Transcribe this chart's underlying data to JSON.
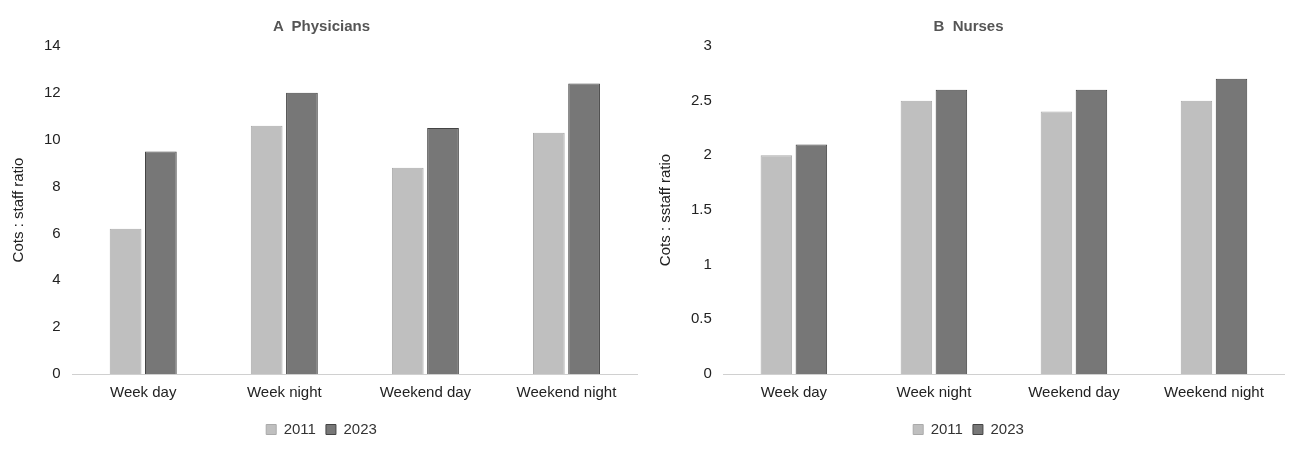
{
  "chart_data": [
    {
      "type": "bar",
      "title": "A  Physicians",
      "ylabel": "Cots : staff ratio",
      "categories": [
        "Week day",
        "Week night",
        "Weekend day",
        "Weekend night"
      ],
      "series": [
        {
          "name": "2011",
          "color": "#bfbfbf",
          "values": [
            6.2,
            10.6,
            8.8,
            10.3
          ]
        },
        {
          "name": "2023",
          "color": "#777777",
          "values": [
            9.5,
            12.0,
            10.5,
            12.4
          ]
        }
      ],
      "ylim": [
        0,
        14
      ],
      "yticks": [
        0,
        2,
        4,
        6,
        8,
        10,
        12,
        14
      ],
      "grid": false,
      "legend": "bottom"
    },
    {
      "type": "bar",
      "title": "B  Nurses",
      "ylabel": "Cots : sstaff ratio",
      "categories": [
        "Week day",
        "Week night",
        "Weekend day",
        "Weekend night"
      ],
      "series": [
        {
          "name": "2011",
          "color": "#bfbfbf",
          "values": [
            2.0,
            2.5,
            2.4,
            2.5
          ]
        },
        {
          "name": "2023",
          "color": "#777777",
          "values": [
            2.1,
            2.6,
            2.6,
            2.7
          ]
        }
      ],
      "ylim": [
        0,
        3
      ],
      "yticks": [
        0,
        0.5,
        1,
        1.5,
        2,
        2.5,
        3
      ],
      "grid": false,
      "legend": "bottom"
    }
  ]
}
